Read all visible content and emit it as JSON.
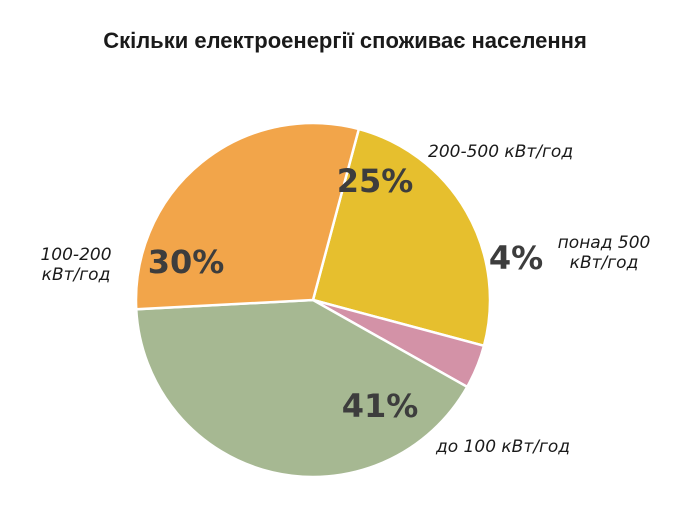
{
  "chart_data": {
    "type": "pie",
    "title": "Скільки електроенергії споживає населення",
    "slices": [
      {
        "label": "200-500 кВт/год",
        "label_lines": [
          "200-500 кВт/год"
        ],
        "value": 25,
        "value_label": "25%",
        "color": "#e6bf2e"
      },
      {
        "label": "понад 500 кВт/год",
        "label_lines": [
          "понад 500",
          "кВт/год"
        ],
        "value": 4,
        "value_label": "4%",
        "color": "#d392a7"
      },
      {
        "label": "до 100 кВт/год",
        "label_lines": [
          "до 100 кВт/год"
        ],
        "value": 41,
        "value_label": "41%",
        "color": "#a6b892"
      },
      {
        "label": "100-200 кВт/год",
        "label_lines": [
          "100-200",
          "кВт/год"
        ],
        "value": 30,
        "value_label": "30%",
        "color": "#f2a54a"
      }
    ]
  }
}
